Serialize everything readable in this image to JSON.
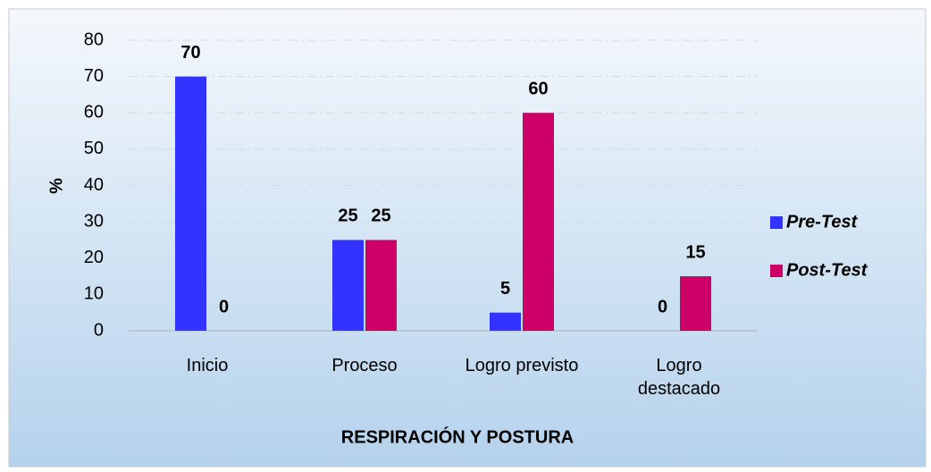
{
  "chart_data": {
    "type": "bar",
    "x_label": "RESPIRACIÓN Y POSTURA",
    "y_label": "%",
    "categories": [
      "Inicio",
      "Proceso",
      "Logro previsto",
      "Logro destacado"
    ],
    "series": [
      {
        "name": "Pre-Test",
        "color": "#3333ff",
        "values": [
          70,
          25,
          5,
          0
        ]
      },
      {
        "name": "Post-Test",
        "color": "#cc0066",
        "values": [
          0,
          25,
          60,
          15
        ]
      }
    ],
    "ylim": [
      0,
      80
    ],
    "yticks": [
      0,
      10,
      20,
      30,
      40,
      50,
      60,
      70,
      80
    ],
    "grid": true,
    "legend": "right"
  }
}
